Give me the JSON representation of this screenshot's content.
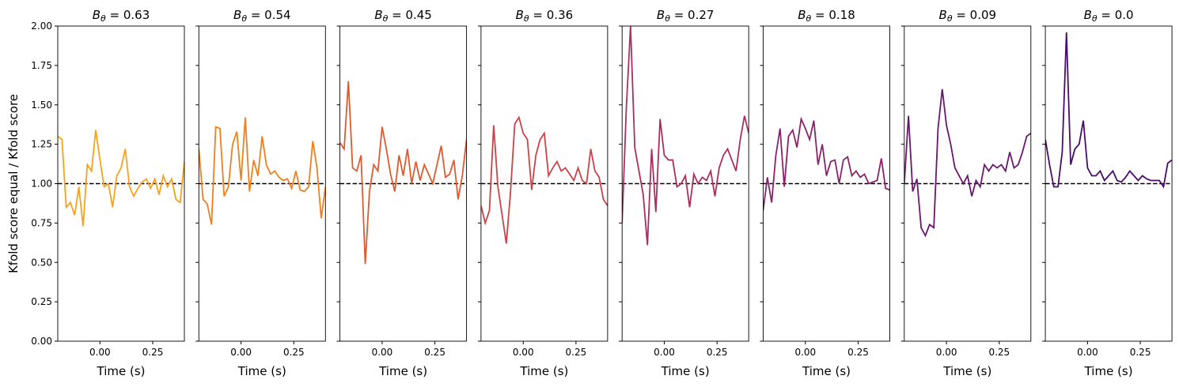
{
  "chart_data": [
    {
      "type": "line",
      "title": "Bθ = 0.63",
      "xlabel": "Time (s)",
      "ylabel": "Kfold score equal / Kfold score",
      "color": "#f8a21c",
      "x": [
        -0.2,
        -0.18,
        -0.16,
        -0.14,
        -0.12,
        -0.1,
        -0.08,
        -0.06,
        -0.04,
        -0.02,
        0,
        0.02,
        0.04,
        0.06,
        0.08,
        0.1,
        0.12,
        0.14,
        0.16,
        0.18,
        0.2,
        0.22,
        0.24,
        0.26,
        0.28,
        0.3,
        0.32,
        0.34,
        0.36,
        0.38,
        0.4
      ],
      "values": [
        1.3,
        1.28,
        0.85,
        0.88,
        0.8,
        0.98,
        0.73,
        1.12,
        1.08,
        1.34,
        1.15,
        0.98,
        1.0,
        0.85,
        1.05,
        1.1,
        1.22,
        0.98,
        0.92,
        0.97,
        1.01,
        1.03,
        0.97,
        1.03,
        0.93,
        1.05,
        0.98,
        1.03,
        0.9,
        0.88,
        1.14
      ],
      "reference_line": 1,
      "xlim": [
        -0.2,
        0.4
      ],
      "ylim": [
        0,
        2
      ],
      "xticks": [
        {
          "value": 0,
          "label": "0.00"
        },
        {
          "value": 0.25,
          "label": "0.25"
        }
      ],
      "yticks": [
        {
          "value": 0,
          "label": "0.00"
        },
        {
          "value": 0.25,
          "label": "0.25"
        },
        {
          "value": 0.5,
          "label": "0.50"
        },
        {
          "value": 0.75,
          "label": "0.75"
        },
        {
          "value": 1,
          "label": "1.00"
        },
        {
          "value": 1.25,
          "label": "1.25"
        },
        {
          "value": 1.5,
          "label": "1.50"
        },
        {
          "value": 1.75,
          "label": "1.75"
        },
        {
          "value": 2,
          "label": "2.00"
        }
      ]
    },
    {
      "type": "line",
      "title": "Bθ = 0.54",
      "xlabel": "Time (s)",
      "color": "#f07f1e",
      "x": [
        -0.2,
        -0.18,
        -0.16,
        -0.14,
        -0.12,
        -0.1,
        -0.08,
        -0.06,
        -0.04,
        -0.02,
        0,
        0.02,
        0.04,
        0.06,
        0.08,
        0.1,
        0.12,
        0.14,
        0.16,
        0.18,
        0.2,
        0.22,
        0.24,
        0.26,
        0.28,
        0.3,
        0.32,
        0.34,
        0.36,
        0.38,
        0.4
      ],
      "values": [
        1.22,
        0.9,
        0.87,
        0.74,
        1.36,
        1.35,
        0.92,
        0.98,
        1.25,
        1.33,
        1.02,
        1.42,
        0.95,
        1.15,
        1.05,
        1.3,
        1.12,
        1.06,
        1.08,
        1.04,
        1.02,
        1.03,
        0.97,
        1.08,
        0.96,
        0.95,
        0.98,
        1.27,
        1.1,
        0.78,
        0.98
      ],
      "reference_line": 1,
      "xlim": [
        -0.2,
        0.4
      ],
      "ylim": [
        0,
        2
      ],
      "xticks": [
        {
          "value": 0,
          "label": "0.00"
        },
        {
          "value": 0.25,
          "label": "0.25"
        }
      ],
      "yticks": [
        0,
        0.25,
        0.5,
        0.75,
        1,
        1.25,
        1.5,
        1.75,
        2
      ]
    },
    {
      "type": "line",
      "title": "Bθ = 0.45",
      "xlabel": "Time (s)",
      "color": "#e05a2f",
      "x": [
        -0.2,
        -0.18,
        -0.16,
        -0.14,
        -0.12,
        -0.1,
        -0.08,
        -0.06,
        -0.04,
        -0.02,
        0,
        0.02,
        0.04,
        0.06,
        0.08,
        0.1,
        0.12,
        0.14,
        0.16,
        0.18,
        0.2,
        0.22,
        0.24,
        0.26,
        0.28,
        0.3,
        0.32,
        0.34,
        0.36,
        0.38,
        0.4
      ],
      "values": [
        1.26,
        1.22,
        1.65,
        1.1,
        1.08,
        1.18,
        0.49,
        0.95,
        1.12,
        1.08,
        1.36,
        1.22,
        1.06,
        0.95,
        1.18,
        1.05,
        1.22,
        1.0,
        1.14,
        1.02,
        1.12,
        1.06,
        1.0,
        1.12,
        1.24,
        1.04,
        1.06,
        1.15,
        0.9,
        1.05,
        1.28
      ],
      "reference_line": 1,
      "xlim": [
        -0.2,
        0.4
      ],
      "ylim": [
        0,
        2
      ],
      "xticks": [
        {
          "value": 0,
          "label": "0.00"
        },
        {
          "value": 0.25,
          "label": "0.25"
        }
      ],
      "yticks": [
        0,
        0.25,
        0.5,
        0.75,
        1,
        1.25,
        1.5,
        1.75,
        2
      ]
    },
    {
      "type": "line",
      "title": "Bθ = 0.36",
      "xlabel": "Time (s)",
      "color": "#cc4248",
      "x": [
        -0.2,
        -0.18,
        -0.16,
        -0.14,
        -0.12,
        -0.1,
        -0.08,
        -0.06,
        -0.04,
        -0.02,
        0,
        0.02,
        0.04,
        0.06,
        0.08,
        0.1,
        0.12,
        0.14,
        0.16,
        0.18,
        0.2,
        0.22,
        0.24,
        0.26,
        0.28,
        0.3,
        0.32,
        0.34,
        0.36,
        0.38,
        0.4
      ],
      "values": [
        0.86,
        0.75,
        0.83,
        1.37,
        0.98,
        0.8,
        0.62,
        0.95,
        1.38,
        1.42,
        1.32,
        1.28,
        0.96,
        1.18,
        1.28,
        1.32,
        1.05,
        1.1,
        1.14,
        1.08,
        1.1,
        1.06,
        1.02,
        1.1,
        1.02,
        1.0,
        1.22,
        1.08,
        1.04,
        0.9,
        0.86
      ],
      "reference_line": 1,
      "xlim": [
        -0.2,
        0.4
      ],
      "ylim": [
        0,
        2
      ],
      "xticks": [
        {
          "value": 0,
          "label": "0.00"
        },
        {
          "value": 0.25,
          "label": "0.25"
        }
      ],
      "yticks": [
        0,
        0.25,
        0.5,
        0.75,
        1,
        1.25,
        1.5,
        1.75,
        2
      ]
    },
    {
      "type": "line",
      "title": "Bθ = 0.27",
      "xlabel": "Time (s)",
      "color": "#ab2f5e",
      "x": [
        -0.2,
        -0.18,
        -0.16,
        -0.14,
        -0.12,
        -0.1,
        -0.08,
        -0.06,
        -0.04,
        -0.02,
        0,
        0.02,
        0.04,
        0.06,
        0.08,
        0.1,
        0.12,
        0.14,
        0.16,
        0.18,
        0.2,
        0.22,
        0.24,
        0.26,
        0.28,
        0.3,
        0.32,
        0.34,
        0.36,
        0.38,
        0.4
      ],
      "values": [
        0.75,
        1.48,
        2.0,
        1.23,
        1.08,
        0.93,
        0.61,
        1.22,
        0.82,
        1.41,
        1.18,
        1.15,
        1.15,
        0.98,
        1.0,
        1.05,
        0.85,
        1.06,
        1.0,
        1.04,
        1.02,
        1.08,
        0.92,
        1.1,
        1.18,
        1.22,
        1.15,
        1.08,
        1.28,
        1.43,
        1.32
      ],
      "reference_line": 1,
      "xlim": [
        -0.2,
        0.4
      ],
      "ylim": [
        0,
        2
      ],
      "xticks": [
        {
          "value": 0,
          "label": "0.00"
        },
        {
          "value": 0.25,
          "label": "0.25"
        }
      ],
      "yticks": [
        0,
        0.25,
        0.5,
        0.75,
        1,
        1.25,
        1.5,
        1.75,
        2
      ]
    },
    {
      "type": "line",
      "title": "Bθ = 0.18",
      "xlabel": "Time (s)",
      "color": "#8a226a",
      "x": [
        -0.2,
        -0.18,
        -0.16,
        -0.14,
        -0.12,
        -0.1,
        -0.08,
        -0.06,
        -0.04,
        -0.02,
        0,
        0.02,
        0.04,
        0.06,
        0.08,
        0.1,
        0.12,
        0.14,
        0.16,
        0.18,
        0.2,
        0.22,
        0.24,
        0.26,
        0.28,
        0.3,
        0.32,
        0.34,
        0.36,
        0.38,
        0.4
      ],
      "values": [
        0.83,
        1.04,
        0.88,
        1.18,
        1.35,
        0.98,
        1.3,
        1.34,
        1.23,
        1.41,
        1.35,
        1.28,
        1.4,
        1.12,
        1.25,
        1.05,
        1.14,
        1.15,
        1.0,
        1.15,
        1.17,
        1.05,
        1.08,
        1.04,
        1.06,
        1.0,
        1.01,
        1.02,
        1.16,
        0.97,
        0.96
      ],
      "reference_line": 1,
      "xlim": [
        -0.2,
        0.4
      ],
      "ylim": [
        0,
        2
      ],
      "xticks": [
        {
          "value": 0,
          "label": "0.00"
        },
        {
          "value": 0.25,
          "label": "0.25"
        }
      ],
      "yticks": [
        0,
        0.25,
        0.5,
        0.75,
        1,
        1.25,
        1.5,
        1.75,
        2
      ]
    },
    {
      "type": "line",
      "title": "Bθ = 0.09",
      "xlabel": "Time (s)",
      "color": "#6a176e",
      "x": [
        -0.2,
        -0.18,
        -0.16,
        -0.14,
        -0.12,
        -0.1,
        -0.08,
        -0.06,
        -0.04,
        -0.02,
        0,
        0.02,
        0.04,
        0.06,
        0.08,
        0.1,
        0.12,
        0.14,
        0.16,
        0.18,
        0.2,
        0.22,
        0.24,
        0.26,
        0.28,
        0.3,
        0.32,
        0.34,
        0.36,
        0.38,
        0.4
      ],
      "values": [
        1.0,
        1.43,
        0.95,
        1.03,
        0.72,
        0.67,
        0.74,
        0.72,
        1.35,
        1.6,
        1.37,
        1.25,
        1.1,
        1.05,
        1.0,
        1.05,
        0.92,
        1.02,
        0.98,
        1.12,
        1.08,
        1.12,
        1.1,
        1.12,
        1.08,
        1.2,
        1.1,
        1.12,
        1.2,
        1.3,
        1.32
      ],
      "reference_line": 1,
      "xlim": [
        -0.2,
        0.4
      ],
      "ylim": [
        0,
        2
      ],
      "xticks": [
        {
          "value": 0,
          "label": "0.00"
        },
        {
          "value": 0.25,
          "label": "0.25"
        }
      ],
      "yticks": [
        0,
        0.25,
        0.5,
        0.75,
        1,
        1.25,
        1.5,
        1.75,
        2
      ]
    },
    {
      "type": "line",
      "title": "Bθ = 0.0",
      "xlabel": "Time (s)",
      "color": "#4a0c6b",
      "x": [
        -0.2,
        -0.18,
        -0.16,
        -0.14,
        -0.12,
        -0.1,
        -0.08,
        -0.06,
        -0.04,
        -0.02,
        0,
        0.02,
        0.04,
        0.06,
        0.08,
        0.1,
        0.12,
        0.14,
        0.16,
        0.18,
        0.2,
        0.22,
        0.24,
        0.26,
        0.28,
        0.3,
        0.32,
        0.34,
        0.36,
        0.38,
        0.4
      ],
      "values": [
        1.28,
        1.12,
        0.98,
        0.98,
        1.2,
        1.96,
        1.12,
        1.22,
        1.25,
        1.4,
        1.1,
        1.05,
        1.05,
        1.08,
        1.02,
        1.05,
        1.08,
        1.02,
        1.01,
        1.04,
        1.08,
        1.05,
        1.02,
        1.05,
        1.03,
        1.02,
        1.02,
        1.02,
        0.98,
        1.13,
        1.15
      ],
      "reference_line": 1,
      "xlim": [
        -0.2,
        0.4
      ],
      "ylim": [
        0,
        2
      ],
      "xticks": [
        {
          "value": 0,
          "label": "0.00"
        },
        {
          "value": 0.25,
          "label": "0.25"
        }
      ],
      "yticks": [
        0,
        0.25,
        0.5,
        0.75,
        1,
        1.25,
        1.5,
        1.75,
        2
      ]
    }
  ]
}
